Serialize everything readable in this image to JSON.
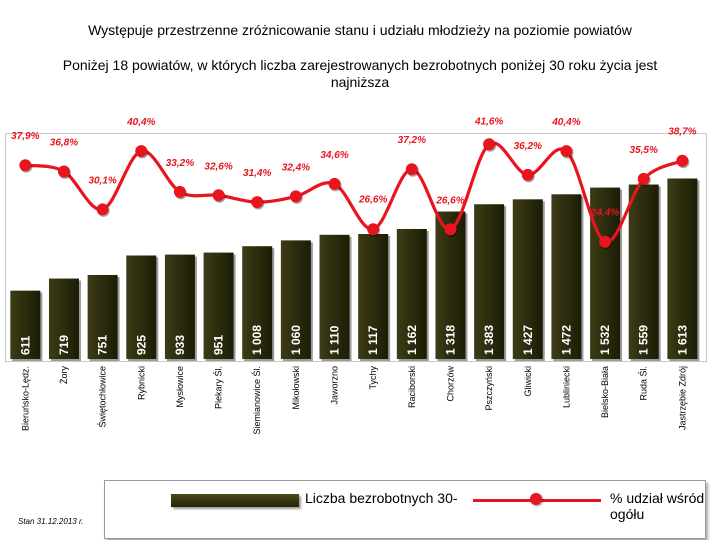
{
  "header": {
    "title": "Występuje przestrzenne  zróżnicowanie stanu i udziału młodzieży  na poziomie powiatów",
    "subtitle": "Poniżej 18  powiatów, w których liczba zarejestrowanych bezrobotnych poniżej 30 roku życia jest najniższa"
  },
  "footnote": "Stan 31.12.2013 r.",
  "legend": {
    "bar_label": "Liczba bezrobotnych 30-",
    "line_label": "% udział wśród ogółu"
  },
  "colors": {
    "bar": "#2e2e0e",
    "line": "#e8141e",
    "label_red": "#e8141e",
    "bar_text": "#ffffff"
  },
  "chart_data": {
    "type": "bar",
    "title": "",
    "xlabel": "",
    "ylabel": "",
    "categories": [
      "Bieruńsko-Lędz.",
      "Żory",
      "Świętochłowice",
      "Rybnicki",
      "Mysłowice",
      "Piekary Śl.",
      "Siemianowice Śl.",
      "Mikołowski",
      "Jaworzno",
      "Tychy",
      "Raciborski",
      "Chorzów",
      "Pszczyński",
      "Gliwicki",
      "Lubliniecki",
      "Bielsko-Biała",
      "Ruda Śl.",
      "Jastrzębie Zdrój"
    ],
    "series": [
      {
        "name": "Liczba bezrobotnych 30-",
        "type": "bar",
        "values": [
          611,
          719,
          751,
          925,
          933,
          951,
          1008,
          1060,
          1110,
          1117,
          1162,
          1318,
          1383,
          1427,
          1472,
          1532,
          1559,
          1613
        ],
        "labels": [
          "611",
          "719",
          "751",
          "925",
          "933",
          "951",
          "1 008",
          "1 060",
          "1 110",
          "1 117",
          "1 162",
          "1 318",
          "1 383",
          "1 427",
          "1 472",
          "1 532",
          "1 559",
          "1 613"
        ]
      },
      {
        "name": "% udział wśród ogółu",
        "type": "line",
        "values": [
          37.9,
          36.8,
          30.1,
          40.4,
          33.2,
          32.6,
          31.4,
          32.4,
          34.6,
          26.6,
          37.2,
          26.6,
          41.6,
          36.2,
          40.4,
          24.4,
          35.5,
          38.7
        ],
        "labels": [
          "37,9%",
          "36,8%",
          "30,1%",
          "40,4%",
          "33,2%",
          "32,6%",
          "31,4%",
          "32,4%",
          "34,6%",
          "26,6%",
          "37,2%",
          "26,6%",
          "41,6%",
          "36,2%",
          "40,4%",
          "24,4%",
          "35,5%",
          "38,7%"
        ]
      }
    ],
    "ylim": [
      0,
      2800
    ],
    "y2lim": [
      12,
      46
    ],
    "grid": false,
    "legend": "bottom"
  }
}
